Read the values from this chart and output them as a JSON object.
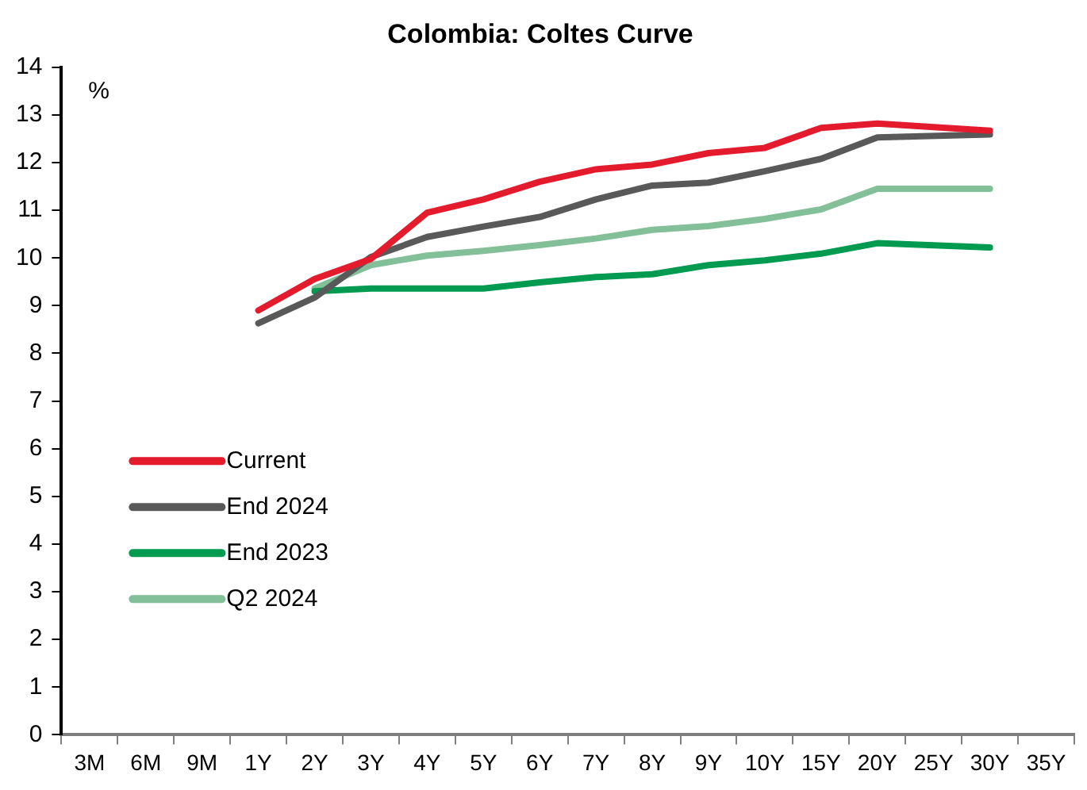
{
  "chart_data": {
    "type": "line",
    "title": "Colombia: Coltes Curve",
    "ylabel": "%",
    "categories": [
      "3M",
      "6M",
      "9M",
      "1Y",
      "2Y",
      "3Y",
      "4Y",
      "5Y",
      "6Y",
      "7Y",
      "8Y",
      "9Y",
      "10Y",
      "15Y",
      "20Y",
      "25Y",
      "30Y",
      "35Y"
    ],
    "series": [
      {
        "name": "Current",
        "color": "#e31b2d",
        "values": [
          null,
          null,
          null,
          8.9,
          9.56,
          9.98,
          10.95,
          11.23,
          11.6,
          11.86,
          11.96,
          12.2,
          12.31,
          12.73,
          12.82,
          null,
          12.67,
          null
        ]
      },
      {
        "name": "End 2024",
        "color": "#595959",
        "values": [
          null,
          null,
          null,
          8.63,
          9.17,
          10.02,
          10.44,
          10.66,
          10.86,
          11.23,
          11.52,
          11.58,
          11.82,
          12.08,
          12.53,
          null,
          12.59,
          null
        ]
      },
      {
        "name": "End 2023",
        "color": "#009a50",
        "values": [
          null,
          null,
          null,
          null,
          9.3,
          9.36,
          9.36,
          9.36,
          9.49,
          9.6,
          9.66,
          9.85,
          9.95,
          10.09,
          10.31,
          null,
          10.22,
          null
        ]
      },
      {
        "name": "Q2 2024",
        "color": "#83bf98",
        "values": [
          null,
          null,
          null,
          null,
          9.36,
          9.85,
          10.05,
          10.15,
          10.27,
          10.41,
          10.59,
          10.67,
          10.82,
          11.02,
          11.45,
          null,
          11.45,
          null
        ]
      }
    ],
    "ylim": [
      0,
      14
    ],
    "yticks": [
      0,
      1,
      2,
      3,
      4,
      5,
      6,
      7,
      8,
      9,
      10,
      11,
      12,
      13,
      14
    ],
    "grid": false,
    "legend": "left",
    "marker": "none",
    "line_style": "solid"
  }
}
